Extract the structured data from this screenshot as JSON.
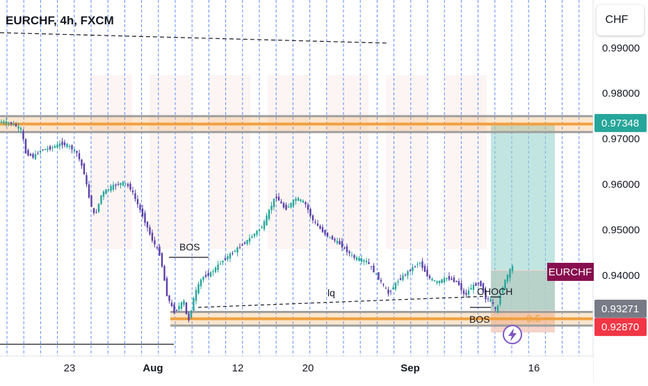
{
  "header": {
    "title": "EURCHF, 4h, FXCM",
    "currency_button": "CHF"
  },
  "colors": {
    "up_candle": "#26a69a",
    "down_candle": "#5b3fa8",
    "zone_orange": "#f0a040",
    "zone_gray": "#9e9e9e",
    "target_zone": "#8fcfc8",
    "stop_zone": "#f2c9bd",
    "symbol_tag": "#880e4f",
    "price_tag_green": "#26a69a",
    "price_tag_gray": "#787b86",
    "price_tag_red": "#f23645",
    "grid_blue": "#2962ff"
  },
  "icons": {
    "lightning": "lightning-icon"
  },
  "chart_data": {
    "type": "candlestick",
    "title": "EURCHF, 4h, FXCM",
    "ylim": [
      0.9165,
      1.0005
    ],
    "y_ticks": [
      "0.99000",
      "0.98000",
      "0.97000",
      "0.96000",
      "0.95000",
      "0.94000"
    ],
    "x_ticks": [
      "23",
      "Aug",
      "12",
      "20",
      "Sep",
      "16"
    ],
    "price_path": [
      [
        0,
        0.9735
      ],
      [
        4,
        0.9738
      ],
      [
        20,
        0.9733
      ],
      [
        33,
        0.972
      ],
      [
        38,
        0.967
      ],
      [
        50,
        0.966
      ],
      [
        60,
        0.9675
      ],
      [
        75,
        0.968
      ],
      [
        90,
        0.969
      ],
      [
        100,
        0.9685
      ],
      [
        112,
        0.967
      ],
      [
        122,
        0.963
      ],
      [
        130,
        0.957
      ],
      [
        138,
        0.9528
      ],
      [
        148,
        0.958
      ],
      [
        162,
        0.9595
      ],
      [
        180,
        0.9605
      ],
      [
        190,
        0.959
      ],
      [
        200,
        0.9555
      ],
      [
        210,
        0.952
      ],
      [
        220,
        0.948
      ],
      [
        232,
        0.9445
      ],
      [
        242,
        0.9355
      ],
      [
        252,
        0.932
      ],
      [
        258,
        0.933
      ],
      [
        266,
        0.9345
      ],
      [
        272,
        0.9295
      ],
      [
        282,
        0.936
      ],
      [
        292,
        0.9395
      ],
      [
        305,
        0.9405
      ],
      [
        320,
        0.943
      ],
      [
        340,
        0.9455
      ],
      [
        360,
        0.948
      ],
      [
        380,
        0.951
      ],
      [
        398,
        0.9575
      ],
      [
        412,
        0.9545
      ],
      [
        428,
        0.957
      ],
      [
        440,
        0.956
      ],
      [
        452,
        0.952
      ],
      [
        470,
        0.949
      ],
      [
        490,
        0.947
      ],
      [
        510,
        0.944
      ],
      [
        530,
        0.943
      ],
      [
        550,
        0.9385
      ],
      [
        560,
        0.936
      ],
      [
        575,
        0.939
      ],
      [
        590,
        0.941
      ],
      [
        605,
        0.943
      ],
      [
        618,
        0.9395
      ],
      [
        630,
        0.9385
      ],
      [
        645,
        0.9395
      ],
      [
        660,
        0.9385
      ],
      [
        670,
        0.9355
      ],
      [
        680,
        0.9375
      ],
      [
        692,
        0.9385
      ],
      [
        700,
        0.935
      ],
      [
        708,
        0.9345
      ],
      [
        716,
        0.9318
      ],
      [
        722,
        0.9365
      ],
      [
        730,
        0.9395
      ],
      [
        738,
        0.942
      ]
    ],
    "zones": [
      {
        "name": "upper-supply-zone",
        "low": 0.9715,
        "high": 0.975
      },
      {
        "name": "lower-demand-zone",
        "low": 0.929,
        "high": 0.932
      }
    ],
    "position": {
      "entry": 0.9412,
      "target": 0.973,
      "stop": 0.9275
    },
    "price_labels": [
      {
        "label": "0.97348",
        "value": 0.97348,
        "color": "#26a69a"
      },
      {
        "label": "EURCHF",
        "value": 0.9408,
        "color": "#880e4f"
      },
      {
        "label": "0.93271",
        "value": 0.93271,
        "color": "#787b86"
      },
      {
        "label": "0.92870",
        "value": 0.9287,
        "color": "#f23645"
      }
    ],
    "annotations": {
      "bos_upper": "BOS",
      "bos_lower": "BOS",
      "choch": "CHOCH",
      "liquidity": "lq",
      "fib_level": "0.5"
    }
  }
}
